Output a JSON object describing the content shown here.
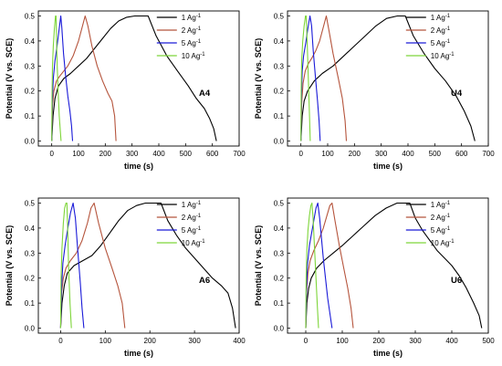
{
  "legend": {
    "entries": [
      {
        "prefix": "1 Ag",
        "sup": "-1",
        "color": "#000000"
      },
      {
        "prefix": "2 Ag",
        "sup": "-1",
        "color": "#b5543c"
      },
      {
        "prefix": "5 Ag",
        "sup": "-1",
        "color": "#1a1ad8"
      },
      {
        "prefix": "10 Ag",
        "sup": "-1",
        "color": "#7ed53a"
      }
    ]
  },
  "chart_data": [
    {
      "type": "line",
      "panel_label": "A4",
      "xlabel": "time (s)",
      "ylabel": "Potential (V vs. SCE)",
      "xlim": [
        -50,
        700
      ],
      "ylim": [
        -0.02,
        0.52
      ],
      "xticks": [
        0,
        100,
        200,
        300,
        400,
        500,
        600,
        700
      ],
      "yticks": [
        0.0,
        0.1,
        0.2,
        0.3,
        0.4,
        0.5
      ],
      "ytick_labels": [
        "0.0",
        "0.1",
        "0.2",
        "0.3",
        "0.4",
        "0.5"
      ],
      "series": [
        {
          "name": "1 Ag-1",
          "color": "#000000",
          "x": [
            0,
            5,
            12,
            25,
            45,
            70,
            100,
            130,
            160,
            190,
            220,
            250,
            280,
            310,
            360,
            390,
            430,
            470,
            510,
            540,
            570,
            590,
            605,
            615
          ],
          "y": [
            0.0,
            0.1,
            0.17,
            0.22,
            0.25,
            0.27,
            0.3,
            0.33,
            0.37,
            0.41,
            0.45,
            0.48,
            0.495,
            0.5,
            0.5,
            0.42,
            0.34,
            0.28,
            0.22,
            0.17,
            0.13,
            0.09,
            0.05,
            0.0
          ]
        },
        {
          "name": "2 Ag-1",
          "color": "#b5543c",
          "x": [
            0,
            3,
            8,
            18,
            30,
            45,
            60,
            80,
            100,
            115,
            125,
            135,
            150,
            170,
            190,
            210,
            225,
            235,
            240
          ],
          "y": [
            0.0,
            0.14,
            0.2,
            0.24,
            0.26,
            0.28,
            0.3,
            0.34,
            0.4,
            0.46,
            0.5,
            0.46,
            0.38,
            0.3,
            0.24,
            0.19,
            0.16,
            0.1,
            0.0
          ]
        },
        {
          "name": "5 Ag-1",
          "color": "#1a1ad8",
          "x": [
            0,
            2,
            6,
            12,
            20,
            28,
            34,
            38,
            44,
            52,
            60,
            68,
            74,
            78
          ],
          "y": [
            0.0,
            0.16,
            0.25,
            0.32,
            0.38,
            0.45,
            0.5,
            0.45,
            0.35,
            0.26,
            0.18,
            0.12,
            0.06,
            0.0
          ]
        },
        {
          "name": "10 Ag-1",
          "color": "#7ed53a",
          "x": [
            0,
            1,
            3,
            6,
            10,
            14,
            16,
            18,
            20,
            24,
            28,
            32,
            35
          ],
          "y": [
            0.0,
            0.18,
            0.3,
            0.38,
            0.45,
            0.5,
            0.5,
            0.42,
            0.32,
            0.2,
            0.1,
            0.04,
            0.0
          ]
        }
      ]
    },
    {
      "type": "line",
      "panel_label": "U4",
      "xlabel": "time (s)",
      "ylabel": "Potential (V vs. SCE)",
      "xlim": [
        -50,
        700
      ],
      "ylim": [
        -0.02,
        0.52
      ],
      "xticks": [
        0,
        100,
        200,
        300,
        400,
        500,
        600,
        700
      ],
      "yticks": [
        0.0,
        0.1,
        0.2,
        0.3,
        0.4,
        0.5
      ],
      "ytick_labels": [
        "0.0",
        "0.1",
        "0.2",
        "0.3",
        "0.4",
        "0.5"
      ],
      "series": [
        {
          "name": "1 Ag-1",
          "color": "#000000",
          "x": [
            0,
            5,
            12,
            25,
            50,
            80,
            120,
            160,
            200,
            240,
            280,
            320,
            360,
            390,
            420,
            460,
            500,
            540,
            580,
            610,
            635,
            650
          ],
          "y": [
            0.0,
            0.1,
            0.16,
            0.2,
            0.24,
            0.27,
            0.3,
            0.34,
            0.38,
            0.42,
            0.46,
            0.49,
            0.5,
            0.5,
            0.42,
            0.35,
            0.29,
            0.24,
            0.18,
            0.12,
            0.06,
            0.0
          ]
        },
        {
          "name": "2 Ag-1",
          "color": "#b5543c",
          "x": [
            0,
            3,
            8,
            16,
            28,
            40,
            55,
            70,
            85,
            95,
            105,
            120,
            140,
            155,
            165,
            170
          ],
          "y": [
            0.0,
            0.15,
            0.23,
            0.28,
            0.31,
            0.33,
            0.36,
            0.4,
            0.46,
            0.5,
            0.44,
            0.35,
            0.25,
            0.17,
            0.08,
            0.0
          ]
        },
        {
          "name": "5 Ag-1",
          "color": "#1a1ad8",
          "x": [
            0,
            2,
            5,
            10,
            18,
            26,
            34,
            40,
            46,
            54,
            62,
            68,
            72
          ],
          "y": [
            0.0,
            0.18,
            0.28,
            0.34,
            0.39,
            0.45,
            0.5,
            0.46,
            0.36,
            0.26,
            0.16,
            0.08,
            0.0
          ]
        },
        {
          "name": "10 Ag-1",
          "color": "#7ed53a",
          "x": [
            0,
            1,
            3,
            7,
            12,
            17,
            20,
            24,
            28,
            32,
            35
          ],
          "y": [
            0.0,
            0.2,
            0.32,
            0.4,
            0.46,
            0.5,
            0.5,
            0.38,
            0.24,
            0.1,
            0.0
          ]
        }
      ]
    },
    {
      "type": "line",
      "panel_label": "A6",
      "xlabel": "time (s)",
      "ylabel": "Potential (V vs. SCE)",
      "xlim": [
        -50,
        400
      ],
      "ylim": [
        -0.02,
        0.52
      ],
      "xticks": [
        0,
        100,
        200,
        300,
        400
      ],
      "yticks": [
        0.0,
        0.1,
        0.2,
        0.3,
        0.4,
        0.5
      ],
      "ytick_labels": [
        "0.0",
        "0.1",
        "0.2",
        "0.3",
        "0.4",
        "0.5"
      ],
      "series": [
        {
          "name": "1 Ag-1",
          "color": "#000000",
          "x": [
            0,
            3,
            8,
            15,
            30,
            50,
            70,
            90,
            110,
            130,
            150,
            170,
            190,
            210,
            225,
            240,
            260,
            280,
            300,
            320,
            340,
            360,
            375,
            385,
            392
          ],
          "y": [
            0.0,
            0.1,
            0.17,
            0.22,
            0.25,
            0.27,
            0.29,
            0.33,
            0.38,
            0.43,
            0.47,
            0.49,
            0.5,
            0.5,
            0.5,
            0.43,
            0.37,
            0.32,
            0.28,
            0.24,
            0.2,
            0.17,
            0.14,
            0.08,
            0.0
          ]
        },
        {
          "name": "2 Ag-1",
          "color": "#b5543c",
          "x": [
            0,
            2,
            6,
            12,
            22,
            35,
            48,
            60,
            68,
            75,
            85,
            100,
            115,
            128,
            138,
            144
          ],
          "y": [
            0.0,
            0.14,
            0.2,
            0.24,
            0.27,
            0.3,
            0.35,
            0.42,
            0.48,
            0.5,
            0.42,
            0.32,
            0.24,
            0.17,
            0.1,
            0.0
          ]
        },
        {
          "name": "5 Ag-1",
          "color": "#1a1ad8",
          "x": [
            0,
            2,
            5,
            10,
            16,
            22,
            28,
            33,
            38,
            44,
            48,
            52
          ],
          "y": [
            0.0,
            0.16,
            0.26,
            0.33,
            0.4,
            0.46,
            0.5,
            0.44,
            0.32,
            0.18,
            0.08,
            0.0
          ]
        },
        {
          "name": "10 Ag-1",
          "color": "#7ed53a",
          "x": [
            0,
            1,
            3,
            6,
            9,
            12,
            14,
            16,
            18,
            21,
            24
          ],
          "y": [
            0.0,
            0.2,
            0.32,
            0.42,
            0.48,
            0.5,
            0.5,
            0.38,
            0.24,
            0.1,
            0.0
          ]
        }
      ]
    },
    {
      "type": "line",
      "panel_label": "U6",
      "xlabel": "time (s)",
      "ylabel": "Potential (V vs. SCE)",
      "xlim": [
        -50,
        500
      ],
      "ylim": [
        -0.02,
        0.52
      ],
      "xticks": [
        0,
        100,
        200,
        300,
        400,
        500
      ],
      "yticks": [
        0.0,
        0.1,
        0.2,
        0.3,
        0.4,
        0.5
      ],
      "ytick_labels": [
        "0.0",
        "0.1",
        "0.2",
        "0.3",
        "0.4",
        "0.5"
      ],
      "series": [
        {
          "name": "1 Ag-1",
          "color": "#000000",
          "x": [
            0,
            3,
            8,
            15,
            30,
            50,
            75,
            100,
            130,
            160,
            190,
            220,
            250,
            270,
            285,
            300,
            320,
            340,
            360,
            380,
            400,
            420,
            440,
            460,
            475,
            482
          ],
          "y": [
            0.0,
            0.1,
            0.16,
            0.2,
            0.24,
            0.27,
            0.3,
            0.33,
            0.37,
            0.41,
            0.45,
            0.48,
            0.5,
            0.5,
            0.5,
            0.44,
            0.39,
            0.35,
            0.31,
            0.28,
            0.25,
            0.21,
            0.16,
            0.1,
            0.05,
            0.0
          ]
        },
        {
          "name": "2 Ag-1",
          "color": "#b5543c",
          "x": [
            0,
            2,
            6,
            12,
            22,
            35,
            48,
            58,
            66,
            72,
            80,
            92,
            104,
            115,
            124,
            130
          ],
          "y": [
            0.0,
            0.14,
            0.22,
            0.27,
            0.31,
            0.35,
            0.4,
            0.45,
            0.49,
            0.5,
            0.43,
            0.33,
            0.24,
            0.16,
            0.08,
            0.0
          ]
        },
        {
          "name": "5 Ag-1",
          "color": "#1a1ad8",
          "x": [
            0,
            2,
            5,
            10,
            16,
            22,
            28,
            33,
            38,
            43,
            48,
            54,
            60,
            66,
            72
          ],
          "y": [
            0.0,
            0.16,
            0.26,
            0.33,
            0.38,
            0.43,
            0.48,
            0.5,
            0.44,
            0.36,
            0.28,
            0.2,
            0.12,
            0.06,
            0.0
          ]
        },
        {
          "name": "10 Ag-1",
          "color": "#7ed53a",
          "x": [
            0,
            1,
            3,
            6,
            10,
            14,
            17,
            20,
            24,
            28,
            32,
            35
          ],
          "y": [
            0.0,
            0.2,
            0.31,
            0.39,
            0.45,
            0.49,
            0.5,
            0.44,
            0.32,
            0.2,
            0.08,
            0.0
          ]
        }
      ]
    }
  ]
}
